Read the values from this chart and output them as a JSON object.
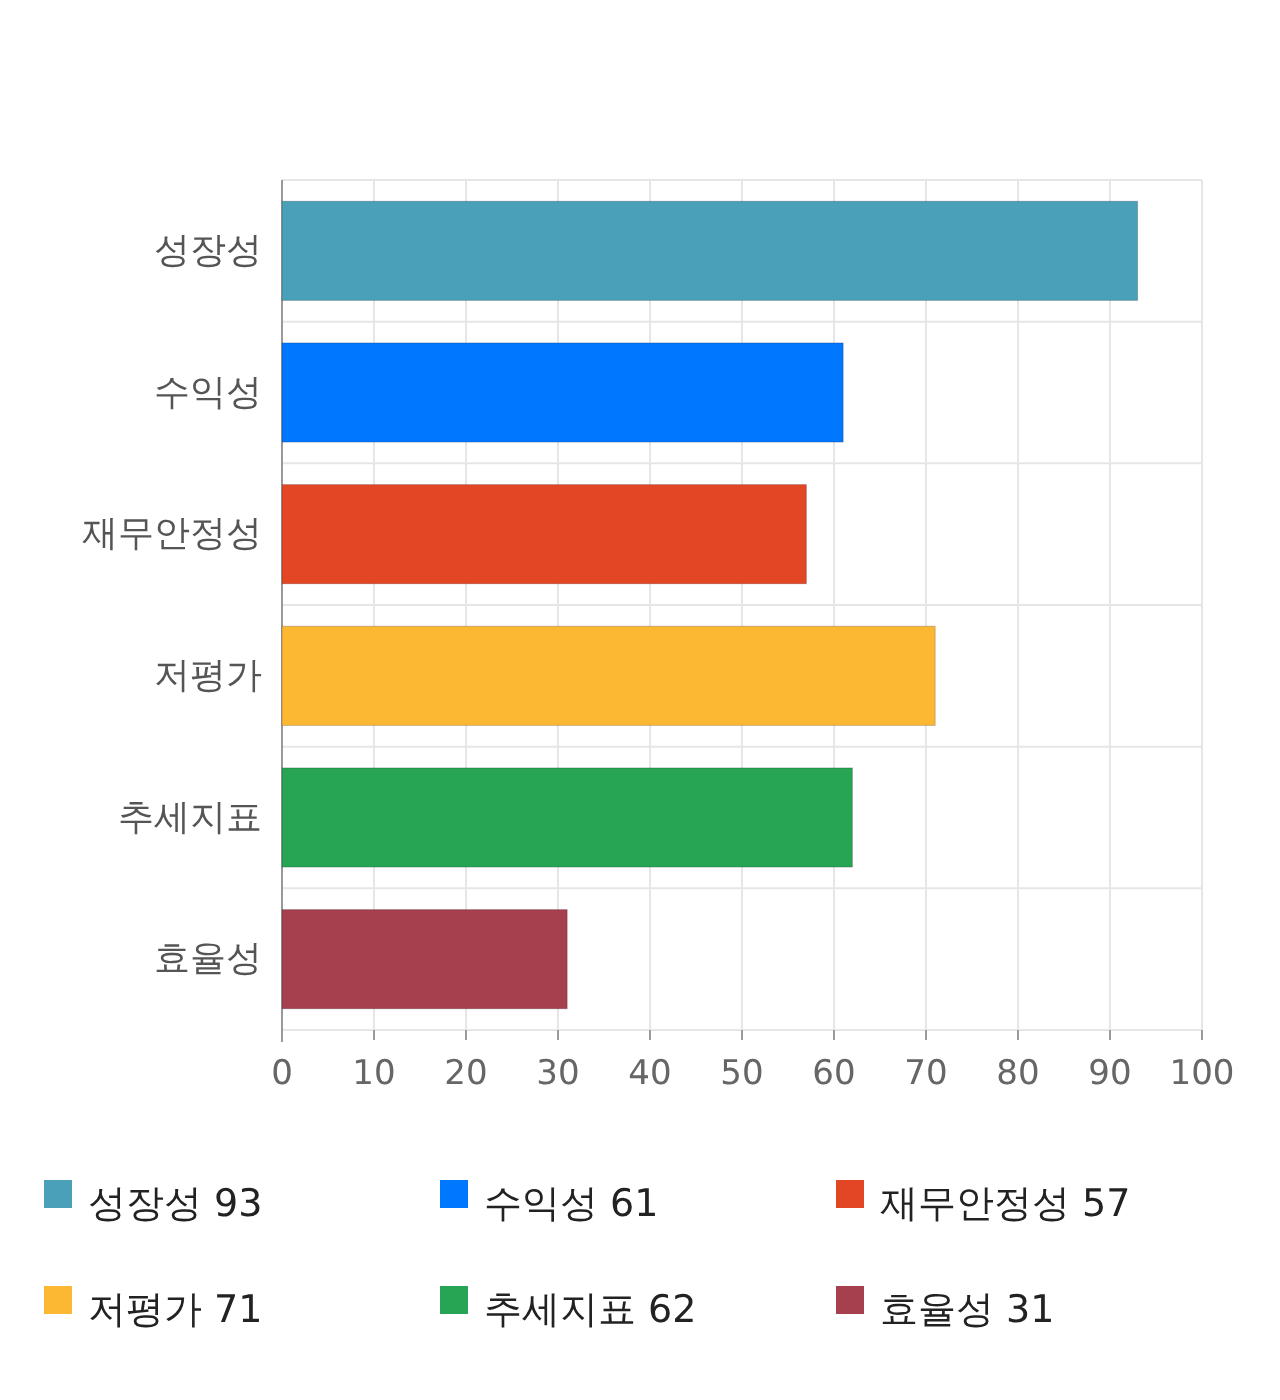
{
  "chart_data": {
    "type": "bar",
    "orientation": "horizontal",
    "stacked": true,
    "categories": [
      "성장성",
      "수익성",
      "재무안정성",
      "저평가",
      "추세지표",
      "효율성"
    ],
    "series": [
      {
        "name": "성장성 93",
        "color": "#4aa0b9",
        "values": [
          93,
          null,
          null,
          null,
          null,
          null
        ]
      },
      {
        "name": "수익성 61",
        "color": "#0077ff",
        "values": [
          null,
          61,
          null,
          null,
          null,
          null
        ]
      },
      {
        "name": "재무안정성 57",
        "color": "#e34625",
        "values": [
          null,
          null,
          57,
          null,
          null,
          null
        ]
      },
      {
        "name": "저평가 71",
        "color": "#fdb833",
        "values": [
          null,
          null,
          null,
          71,
          null,
          null
        ]
      },
      {
        "name": "추세지표 62",
        "color": "#27a554",
        "values": [
          null,
          null,
          null,
          null,
          62,
          null
        ]
      },
      {
        "name": "효율성 31",
        "color": "#a6404e",
        "values": [
          null,
          null,
          null,
          null,
          null,
          31
        ]
      }
    ],
    "xlim": [
      0,
      100
    ],
    "xticks": [
      0,
      10,
      20,
      30,
      40,
      50,
      60,
      70,
      80,
      90,
      100
    ],
    "grid": true,
    "legend": "bottom"
  }
}
